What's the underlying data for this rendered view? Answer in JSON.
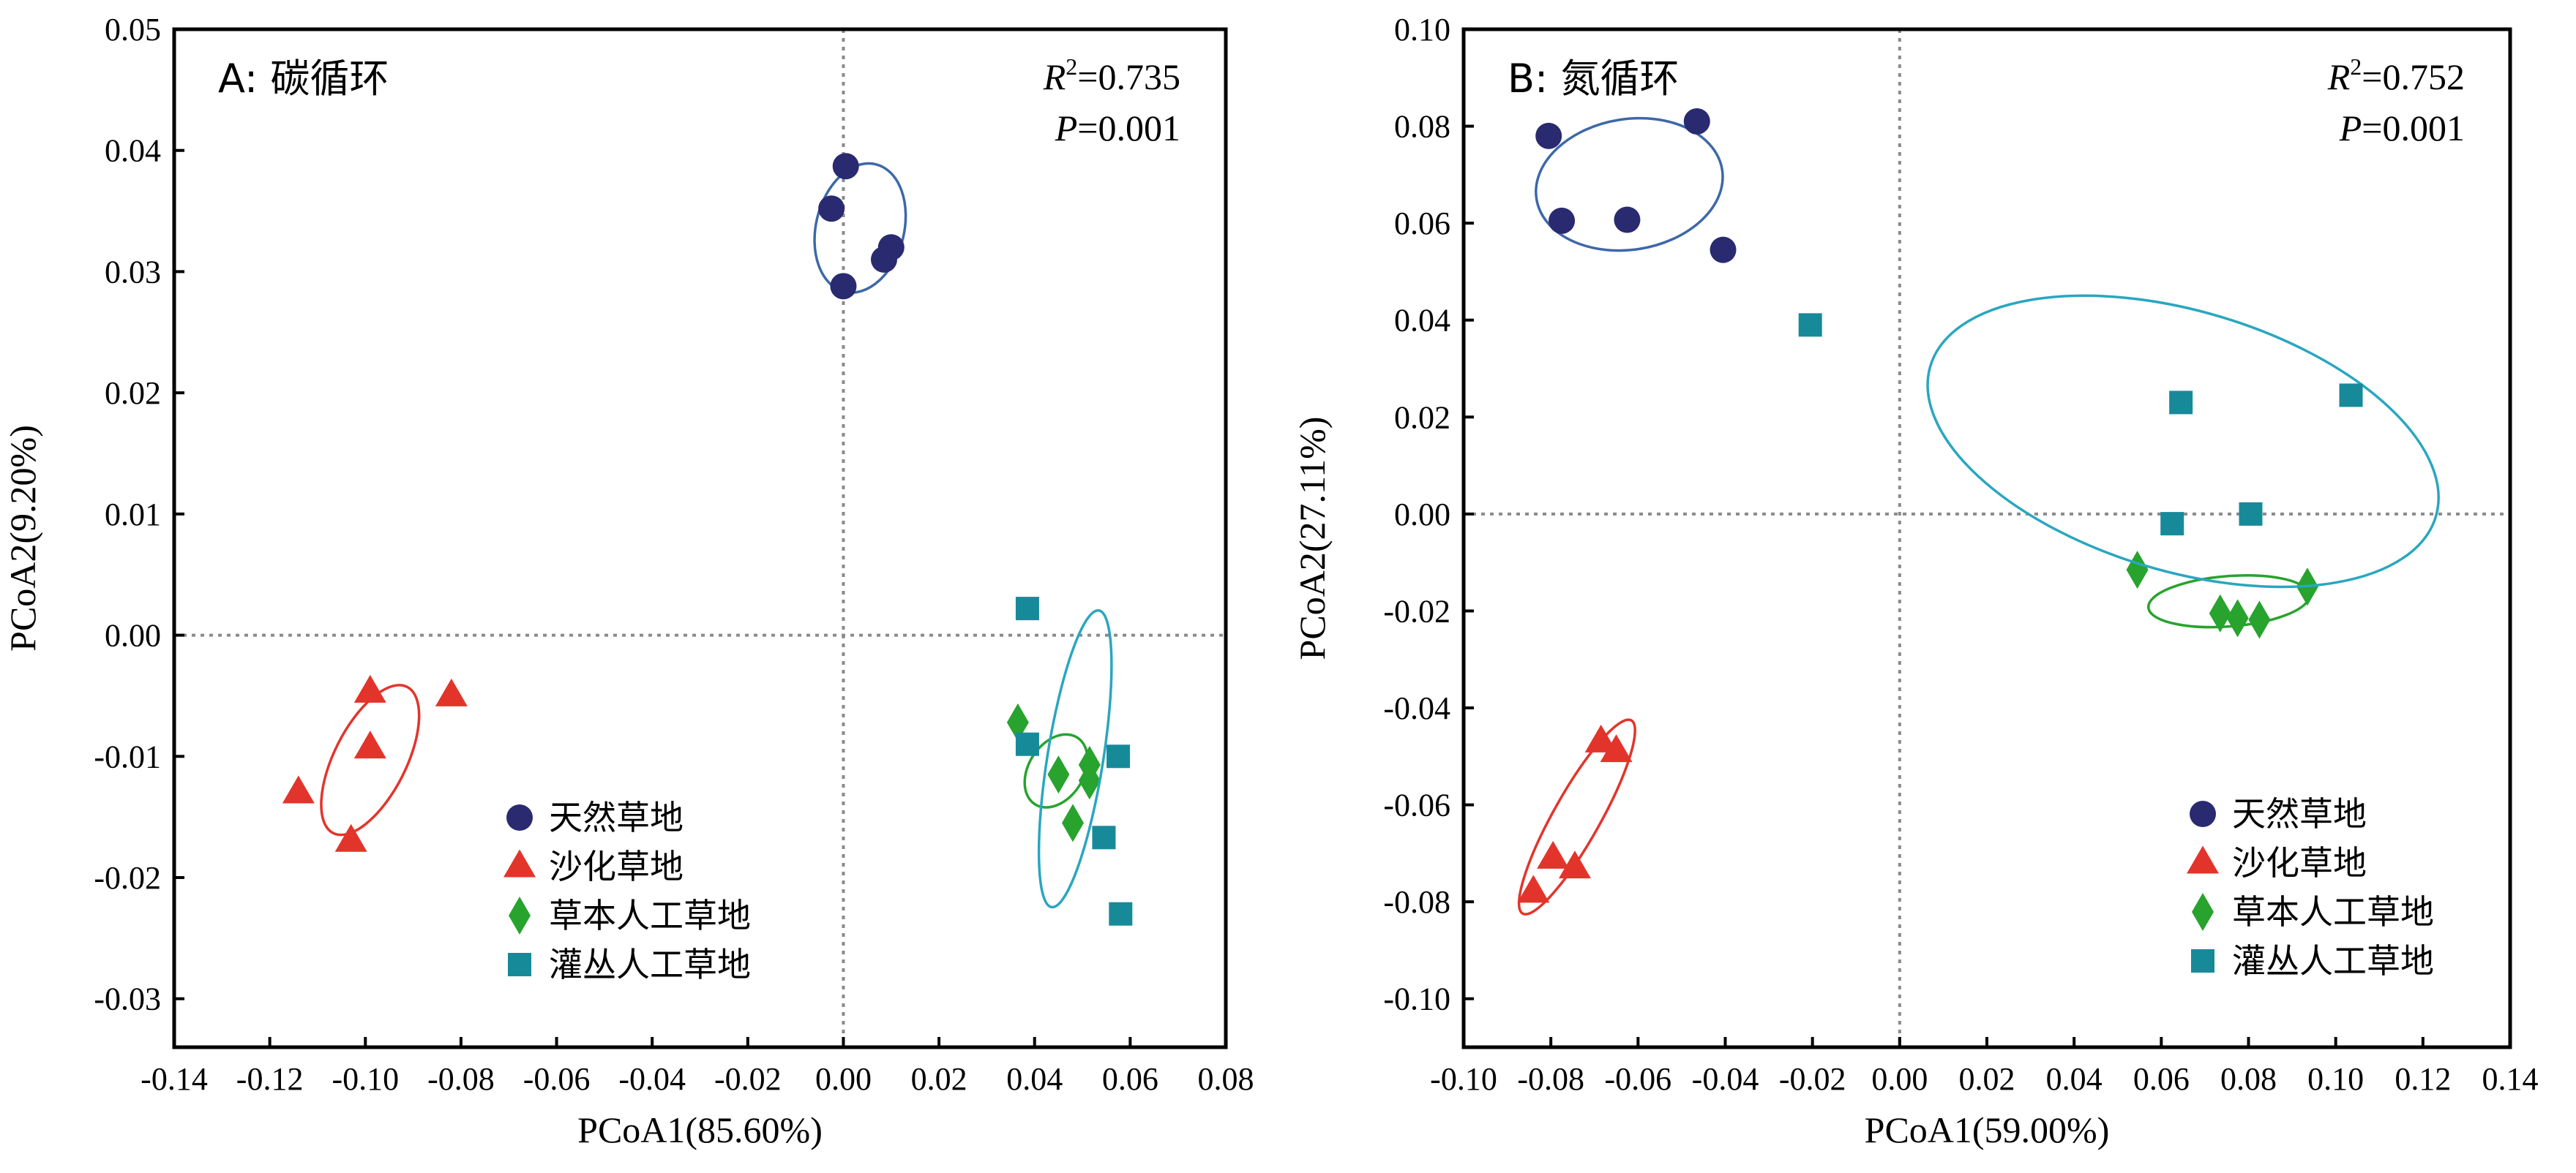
{
  "chart_data": [
    {
      "type": "scatter",
      "panel_label": "A: 碳循环",
      "stats": {
        "r2_label": "R",
        "r2_value": "=0.735",
        "p_label": "P",
        "p_value": "=0.001"
      },
      "xlabel": "PCoA1(85.60%)",
      "ylabel": "PCoA2(9.20%)",
      "xlim": [
        -0.14,
        0.08
      ],
      "ylim": [
        -0.034,
        0.05
      ],
      "xticks": [
        "-0.14",
        "-0.12",
        "-0.10",
        "-0.08",
        "-0.06",
        "-0.04",
        "-0.02",
        "0.00",
        "0.02",
        "0.04",
        "0.06",
        "0.08"
      ],
      "yticks": [
        "0.05",
        "0.04",
        "0.03",
        "0.02",
        "0.01",
        "0.00",
        "-0.01",
        "-0.02",
        "-0.03"
      ],
      "series": [
        {
          "name": "天然草地",
          "marker": "circle",
          "color": "#2a2a70",
          "points": [
            [
              0.0005,
              0.0387
            ],
            [
              -0.0025,
              0.0352
            ],
            [
              0.01,
              0.032
            ],
            [
              0.0085,
              0.031
            ],
            [
              0.0,
              0.0288
            ]
          ],
          "ellipse": {
            "cx": 0.0035,
            "cy": 0.0336,
            "rx": 0.0062,
            "ry": 0.0058,
            "angle_deg": -58,
            "color": "#3d68a8"
          }
        },
        {
          "name": "沙化草地",
          "marker": "triangle",
          "color": "#e3342b",
          "points": [
            [
              -0.099,
              -0.0047
            ],
            [
              -0.082,
              -0.005
            ],
            [
              -0.099,
              -0.0093
            ],
            [
              -0.114,
              -0.013
            ],
            [
              -0.103,
              -0.017
            ]
          ],
          "ellipse": {
            "cx": -0.099,
            "cy": -0.0103,
            "rx": 0.0098,
            "ry": 0.0036,
            "angle_deg": -38,
            "color": "#e3342b"
          }
        },
        {
          "name": "草本人工草地",
          "marker": "diamond",
          "color": "#27a32e",
          "points": [
            [
              0.0365,
              -0.0072
            ],
            [
              0.045,
              -0.0115
            ],
            [
              0.0515,
              -0.0107
            ],
            [
              0.0515,
              -0.012
            ],
            [
              0.048,
              -0.0155
            ]
          ],
          "ellipse": {
            "cx": 0.0445,
            "cy": -0.0112,
            "rx": 0.0052,
            "ry": 0.0026,
            "angle_deg": -32,
            "color": "#27a32e"
          }
        },
        {
          "name": "灌丛人工草地",
          "marker": "square",
          "color": "#178a9a",
          "points": [
            [
              0.0385,
              0.0022
            ],
            [
              0.0385,
              -0.009
            ],
            [
              0.0575,
              -0.01
            ],
            [
              0.0545,
              -0.0167
            ],
            [
              0.058,
              -0.023
            ]
          ],
          "ellipse": {
            "cx": 0.0485,
            "cy": -0.0102,
            "rx": 0.0132,
            "ry": 0.0044,
            "angle_deg": -68,
            "color": "#2aa6c0"
          }
        }
      ]
    },
    {
      "type": "scatter",
      "panel_label": "B: 氮循环",
      "stats": {
        "r2_label": "R",
        "r2_value": "=0.752",
        "p_label": "P",
        "p_value": "=0.001"
      },
      "xlabel": "PCoA1(59.00%)",
      "ylabel": "PCoA2(27.11%)",
      "xlim": [
        -0.1,
        0.14
      ],
      "ylim": [
        -0.11,
        0.1
      ],
      "xticks": [
        "-0.10",
        "-0.08",
        "-0.06",
        "-0.04",
        "-0.02",
        "0.00",
        "0.02",
        "0.04",
        "0.06",
        "0.08",
        "0.10",
        "0.12",
        "0.14"
      ],
      "yticks": [
        "0.10",
        "0.08",
        "0.06",
        "0.04",
        "0.02",
        "0.00",
        "-0.02",
        "-0.04",
        "-0.06",
        "-0.08",
        "-0.10"
      ],
      "series": [
        {
          "name": "天然草地",
          "marker": "circle",
          "color": "#2a2a70",
          "points": [
            [
              -0.0805,
              0.078
            ],
            [
              -0.0465,
              0.081
            ],
            [
              -0.0775,
              0.0605
            ],
            [
              -0.0625,
              0.0607
            ],
            [
              -0.0405,
              0.0545
            ]
          ],
          "ellipse": {
            "cx": -0.062,
            "cy": 0.068,
            "rx": 0.0215,
            "ry": 0.0135,
            "angle_deg": -8,
            "color": "#3d68a8"
          }
        },
        {
          "name": "沙化草地",
          "marker": "triangle",
          "color": "#e3342b",
          "points": [
            [
              -0.0685,
              -0.047
            ],
            [
              -0.065,
              -0.049
            ],
            [
              -0.0795,
              -0.071
            ],
            [
              -0.0745,
              -0.073
            ],
            [
              -0.084,
              -0.078
            ]
          ],
          "ellipse": {
            "cx": -0.074,
            "cy": -0.0625,
            "rx": 0.0235,
            "ry": 0.0052,
            "angle_deg": -58,
            "color": "#e3342b"
          }
        },
        {
          "name": "草本人工草地",
          "marker": "diamond",
          "color": "#27a32e",
          "points": [
            [
              0.0545,
              -0.0115
            ],
            [
              0.0935,
              -0.015
            ],
            [
              0.0735,
              -0.0205
            ],
            [
              0.0775,
              -0.0215
            ],
            [
              0.0825,
              -0.0218
            ]
          ],
          "ellipse": {
            "cx": 0.0755,
            "cy": -0.018,
            "rx": 0.0185,
            "ry": 0.0052,
            "angle_deg": -4,
            "color": "#27a32e"
          }
        },
        {
          "name": "灌丛人工草地",
          "marker": "square",
          "color": "#178a9a",
          "points": [
            [
              -0.0205,
              0.039
            ],
            [
              0.0645,
              0.023
            ],
            [
              0.1035,
              0.0245
            ],
            [
              0.0625,
              -0.002
            ],
            [
              0.0805,
              0.0
            ]
          ],
          "ellipse": {
            "cx": 0.065,
            "cy": 0.015,
            "rx": 0.06,
            "ry": 0.027,
            "angle_deg": 15,
            "color": "#2aa6c0"
          }
        }
      ]
    }
  ]
}
